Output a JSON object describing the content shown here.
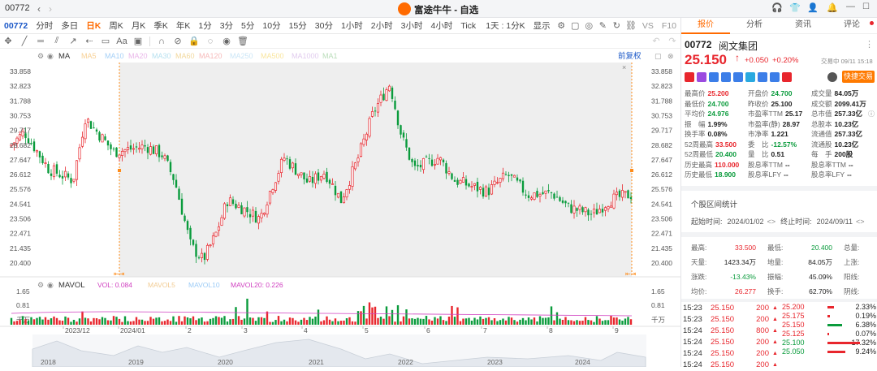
{
  "window": {
    "code": "00772",
    "app_title": "富途牛牛 - 自选"
  },
  "toolbar": {
    "periods": [
      "分时",
      "多日",
      "日K",
      "周K",
      "月K",
      "季K",
      "年K",
      "1分",
      "3分",
      "5分",
      "10分",
      "15分",
      "30分",
      "1小时",
      "2小时",
      "3小时",
      "4小时",
      "Tick",
      "1天 : 1分K"
    ],
    "active_period": "日K",
    "display_label": "显示",
    "vs_label": "VS",
    "f10_label": "F10"
  },
  "indicator": {
    "ma_label": "MA",
    "ma_items": [
      "MA5",
      "MA10",
      "MA20",
      "MA30",
      "MA60",
      "MA120",
      "MA250",
      "MA500",
      "MA1000",
      "MA1"
    ],
    "ma_colors": [
      "#f2a93b",
      "#5aa9f0",
      "#d97ad8",
      "#7ac7e3",
      "#e7b84a",
      "#f08080",
      "#9ed1f0",
      "#f5d04a",
      "#c8a0e0",
      "#80c080"
    ],
    "adjust_label": "前复权"
  },
  "price_axis": [
    "33.858",
    "32.823",
    "31.788",
    "30.753",
    "29.717",
    "28.682",
    "27.647",
    "26.612",
    "25.576",
    "24.541",
    "23.506",
    "22.471",
    "21.435",
    "20.400"
  ],
  "volume": {
    "label": "MAVOL",
    "vol_label": "VOL: 0.084",
    "mavol5": "MAVOL5",
    "mavol10": "MAVOL10",
    "mavol20_label": "MAVOL20: 0.226",
    "axis": [
      "1.65",
      "0.81",
      "千万"
    ]
  },
  "month_labels": [
    "2023/12",
    "2024/01",
    "2",
    "3",
    "4",
    "5",
    "6",
    "7",
    "8",
    "9"
  ],
  "overview_years": [
    "2018",
    "2019",
    "2020",
    "2021",
    "2022",
    "2023",
    "2024"
  ],
  "right": {
    "tabs": [
      "报价",
      "分析",
      "资讯",
      "评论"
    ],
    "code": "00772",
    "name": "阅文集团",
    "price": "25.150",
    "change": "+0.050",
    "change_pct": "+0.20%",
    "time": "交易中 09/11 15:18",
    "quick_trade": "快捷交易",
    "stats": [
      [
        [
          "最高价",
          "25.200",
          "red"
        ],
        [
          "开盘价",
          "24.700",
          "green"
        ],
        [
          "成交量",
          "84.05万",
          ""
        ]
      ],
      [
        [
          "最低价",
          "24.700",
          "green"
        ],
        [
          "昨收价",
          "25.100",
          ""
        ],
        [
          "成交额",
          "2099.41万",
          ""
        ]
      ],
      [
        [
          "平均价",
          "24.976",
          "green"
        ],
        [
          "市盈率TTM",
          "25.17",
          ""
        ],
        [
          "总市值",
          "257.33亿",
          ""
        ]
      ],
      [
        [
          "振　幅",
          "1.99%",
          ""
        ],
        [
          "市盈率(静)",
          "28.97",
          ""
        ],
        [
          "总股本",
          "10.23亿",
          ""
        ]
      ],
      [
        [
          "换手率",
          "0.08%",
          ""
        ],
        [
          "市净率",
          "1.221",
          ""
        ],
        [
          "流通值",
          "257.33亿",
          ""
        ]
      ],
      [
        [
          "52周最高",
          "33.500",
          "red"
        ],
        [
          "委　比",
          "-12.57%",
          "green"
        ],
        [
          "流通股",
          "10.23亿",
          ""
        ]
      ],
      [
        [
          "52周最低",
          "20.400",
          "green"
        ],
        [
          "量　比",
          "0.51",
          ""
        ],
        [
          "每　手",
          "200股",
          ""
        ]
      ],
      [
        [
          "历史最高",
          "110.000",
          "red"
        ],
        [
          "股息率TTM",
          "--",
          ""
        ],
        [
          "股息率TTM",
          "--",
          ""
        ]
      ],
      [
        [
          "历史最低",
          "18.900",
          "green"
        ],
        [
          "股息率LFY",
          "--",
          ""
        ],
        [
          "股息率LFY",
          "--",
          ""
        ]
      ]
    ],
    "interval_title": "个股区间统计",
    "start_label": "起始时间:",
    "start_date": "2024/01/02",
    "end_label": "终止时间:",
    "end_date": "2024/09/11",
    "interval": [
      [
        [
          "最高:",
          "33.500",
          "red"
        ],
        [
          "最低:",
          "20.400",
          "green"
        ],
        [
          "总量:",
          ""
        ]
      ],
      [
        [
          "天量:",
          "1423.34万",
          ""
        ],
        [
          "地量:",
          "84.05万",
          ""
        ],
        [
          "上涨:",
          ""
        ]
      ],
      [
        [
          "涨跌:",
          "-13.43%",
          "green"
        ],
        [
          "振幅:",
          "45.09%",
          ""
        ],
        [
          "阳线:",
          ""
        ]
      ],
      [
        [
          "均价:",
          "26.277",
          "red"
        ],
        [
          "换手:",
          "62.70%",
          ""
        ],
        [
          "阴线:",
          ""
        ]
      ]
    ],
    "ticks": [
      [
        "15:23",
        "25.150",
        "200"
      ],
      [
        "15:23",
        "25.150",
        "200"
      ],
      [
        "15:24",
        "25.150",
        "800"
      ],
      [
        "15:24",
        "25.150",
        "200"
      ],
      [
        "15:24",
        "25.150",
        "200"
      ],
      [
        "15:24",
        "25.150",
        "200"
      ]
    ],
    "book": [
      [
        "25.200",
        "2.33%"
      ],
      [
        "25.175",
        "0.19%"
      ],
      [
        "25.150",
        "6.38%"
      ],
      [
        "25.125",
        "0.07%"
      ],
      [
        "25.100",
        "17.32%"
      ],
      [
        "25.050",
        "9.24%"
      ]
    ]
  }
}
